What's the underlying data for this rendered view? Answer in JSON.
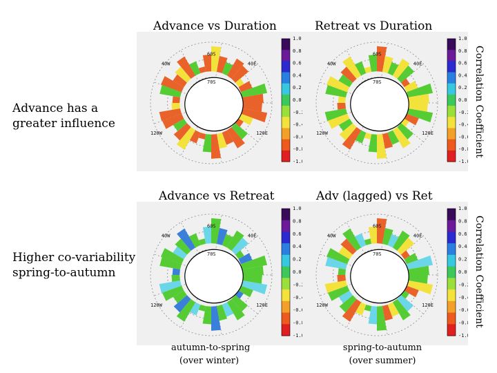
{
  "titles": {
    "top_left": "Advance vs Duration",
    "top_right": "Retreat vs Duration",
    "bottom_left": "Advance vs Retreat",
    "bottom_right": "Adv (lagged) vs Ret"
  },
  "side_notes": {
    "top_line1": "Advance has a",
    "top_line2": "greater influence",
    "bottom_line1": "Higher co-variability",
    "bottom_line2": "spring-to-autumn"
  },
  "colorbar_label": "Correlation Coefficient",
  "colorbar_ticks": [
    "1.0",
    "0.8",
    "0.6",
    "0.4",
    "0.2",
    "0.0",
    "-0.2",
    "-0.4",
    "-0.6",
    "-0.8",
    "-1.0"
  ],
  "map_labels": {
    "lat_n": "60S",
    "lat_inner": "70S",
    "lon_tl": "40W",
    "lon_tr": "40E",
    "lon_bl": "120W",
    "lon_br": "120E"
  },
  "captions": {
    "left_line1": "autumn-to-spring",
    "left_line2": "(over winter)",
    "right_line1": "spring-to-autumn",
    "right_line2": "(over summer)"
  },
  "colors": {
    "ring_orange": "#e8622a",
    "ring_yellow": "#f4e23c",
    "ring_green": "#55cc33",
    "ring_cyan": "#6ad6e8",
    "ring_blue": "#3a7fd9"
  }
}
